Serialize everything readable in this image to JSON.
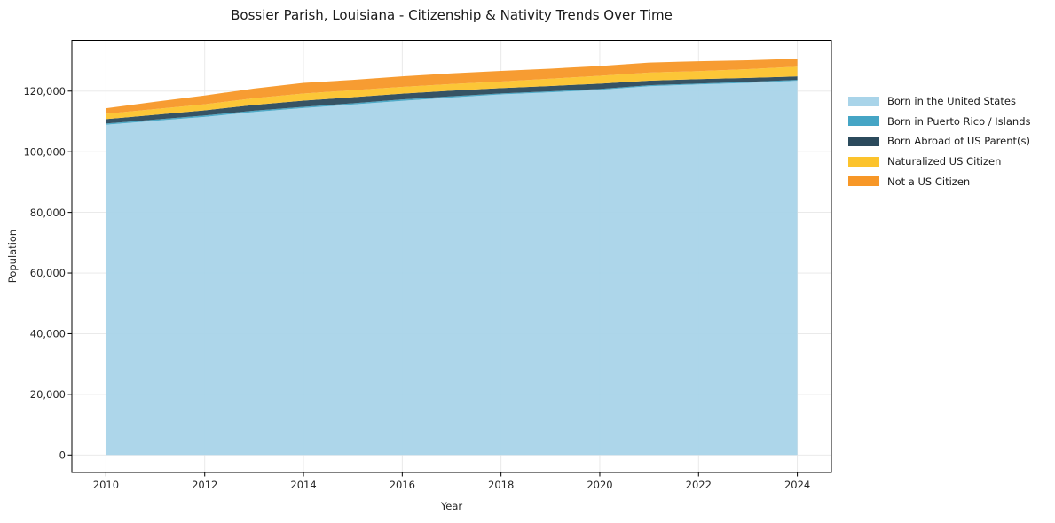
{
  "title": "Bossier Parish, Louisiana - Citizenship & Nativity Trends Over Time",
  "xlabel": "Year",
  "ylabel": "Population",
  "chart_data": {
    "type": "area",
    "stacked": true,
    "title": "Bossier Parish, Louisiana - Citizenship & Nativity Trends Over Time",
    "xlabel": "Year",
    "ylabel": "Population",
    "x": [
      2010,
      2011,
      2012,
      2013,
      2014,
      2015,
      2016,
      2017,
      2018,
      2019,
      2020,
      2021,
      2022,
      2023,
      2024
    ],
    "series": [
      {
        "name": "Born in the United States",
        "color": "#A9D4E9",
        "values": [
          108900,
          110200,
          111500,
          113100,
          114400,
          115600,
          116800,
          117900,
          118900,
          119600,
          120400,
          121600,
          122200,
          122700,
          123400
        ]
      },
      {
        "name": "Born in Puerto Rico / Islands",
        "color": "#45A5C5",
        "values": [
          400,
          400,
          450,
          450,
          400,
          400,
          450,
          400,
          350,
          350,
          300,
          350,
          300,
          350,
          300
        ]
      },
      {
        "name": "Born Abroad of US Parent(s)",
        "color": "#2B4A5C",
        "values": [
          1450,
          1600,
          1700,
          1900,
          2050,
          2000,
          1900,
          1850,
          1750,
          1750,
          1750,
          1500,
          1450,
          1300,
          1150
        ]
      },
      {
        "name": "Naturalized US Citizen",
        "color": "#FCC32C",
        "values": [
          1750,
          1900,
          2000,
          2200,
          2350,
          2300,
          2250,
          2200,
          2150,
          2400,
          2600,
          2650,
          2650,
          2900,
          3200
        ]
      },
      {
        "name": "Not a US Citizen",
        "color": "#F79727",
        "values": [
          1850,
          2400,
          2900,
          3200,
          3500,
          3400,
          3450,
          3500,
          3500,
          3300,
          3200,
          3300,
          3250,
          2900,
          2650
        ]
      }
    ],
    "x_ticks": [
      2010,
      2012,
      2014,
      2016,
      2018,
      2020,
      2022,
      2024
    ],
    "y_ticks": [
      0,
      20000,
      40000,
      60000,
      80000,
      100000,
      120000
    ],
    "xlim": [
      2009.31,
      2024.69
    ],
    "ylim": [
      -5760,
      136740
    ],
    "grid": true,
    "grid_color": "#e7e7e7",
    "spine_color": "#000000",
    "tick_label_color": "#262626",
    "legend_position": "right"
  }
}
